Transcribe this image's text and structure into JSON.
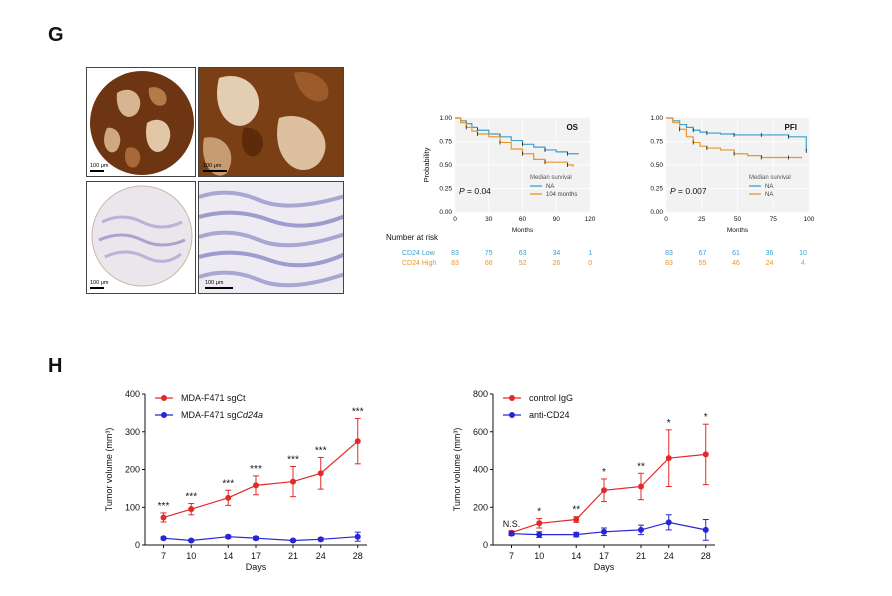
{
  "panels": {
    "g_label": "G",
    "h_label": "H"
  },
  "ihc": {
    "scale_label": "100 μm"
  },
  "colors": {
    "low": "#3aa0cf",
    "high": "#e8962b",
    "red": "#e32a2a",
    "blue": "#2626d6",
    "brown": "#7a3f14",
    "tan": "#d8b592",
    "purple": "#a7a7d4"
  },
  "risk_table": {
    "title": "Number at risk",
    "rows": [
      {
        "label": "CD24 Low",
        "os": [
          "83",
          "75",
          "63",
          "34",
          "1"
        ],
        "pfi": [
          "83",
          "67",
          "61",
          "36",
          "10"
        ]
      },
      {
        "label": "CD24 High",
        "os": [
          "83",
          "66",
          "52",
          "26",
          "0"
        ],
        "pfi": [
          "83",
          "55",
          "46",
          "24",
          "4"
        ]
      }
    ]
  },
  "chart_data": [
    {
      "type": "line",
      "title": "OS",
      "xlabel": "Months",
      "ylabel": "Probability",
      "xlim": [
        0,
        120
      ],
      "ylim": [
        0,
        1
      ],
      "xticks": [
        "0",
        "30",
        "60",
        "90",
        "120"
      ],
      "yticks": [
        "0.00",
        "0.25",
        "0.50",
        "0.75",
        "1.00"
      ],
      "p_value": "= 0.04",
      "p_symbol": "P",
      "legend_title": "Median survival",
      "series": [
        {
          "name": "NA",
          "color": "#3aa0cf",
          "x": [
            0,
            5,
            10,
            15,
            20,
            30,
            40,
            50,
            60,
            70,
            80,
            90,
            100,
            110
          ],
          "y": [
            1.0,
            0.97,
            0.94,
            0.9,
            0.87,
            0.83,
            0.8,
            0.76,
            0.72,
            0.69,
            0.66,
            0.64,
            0.62,
            0.62
          ]
        },
        {
          "name": "104 months",
          "color": "#e8962b",
          "x": [
            0,
            5,
            10,
            15,
            20,
            30,
            40,
            50,
            60,
            70,
            80,
            90,
            100,
            105
          ],
          "y": [
            1.0,
            0.95,
            0.9,
            0.86,
            0.83,
            0.8,
            0.74,
            0.67,
            0.62,
            0.56,
            0.53,
            0.53,
            0.5,
            0.48
          ]
        }
      ]
    },
    {
      "type": "line",
      "title": "PFI",
      "xlabel": "Months",
      "ylabel": "",
      "xlim": [
        0,
        105
      ],
      "ylim": [
        0,
        1
      ],
      "xticks": [
        "0",
        "25",
        "50",
        "75",
        "100"
      ],
      "yticks": [
        "0.00",
        "0.25",
        "0.50",
        "0.75",
        "1.00"
      ],
      "p_value": "= 0.007",
      "p_symbol": "P",
      "legend_title": "Median survival",
      "series": [
        {
          "name": "NA",
          "color": "#3aa0cf",
          "x": [
            0,
            5,
            10,
            15,
            20,
            25,
            30,
            40,
            50,
            60,
            70,
            80,
            90,
            100,
            103
          ],
          "y": [
            1.0,
            0.97,
            0.93,
            0.9,
            0.87,
            0.85,
            0.84,
            0.83,
            0.82,
            0.82,
            0.82,
            0.82,
            0.8,
            0.8,
            0.65
          ]
        },
        {
          "name": "NA",
          "color": "#e8962b",
          "x": [
            0,
            5,
            10,
            15,
            20,
            25,
            30,
            40,
            50,
            60,
            70,
            80,
            90,
            100
          ],
          "y": [
            1.0,
            0.95,
            0.88,
            0.8,
            0.74,
            0.7,
            0.68,
            0.66,
            0.62,
            0.6,
            0.58,
            0.58,
            0.58,
            0.58
          ]
        }
      ]
    },
    {
      "type": "line",
      "title": "",
      "xlabel": "Days",
      "ylabel": "Tumor volume (mm³)",
      "x": [
        7,
        10,
        14,
        17,
        21,
        24,
        28
      ],
      "xticks": [
        "7",
        "10",
        "14",
        "17",
        "21",
        "24",
        "28"
      ],
      "ylim": [
        0,
        400
      ],
      "yticks": [
        "0",
        "100",
        "200",
        "300",
        "400"
      ],
      "series": [
        {
          "name": "MDA-F471 sgCt",
          "color": "#e32a2a",
          "values": [
            73,
            95,
            125,
            158,
            168,
            190,
            275
          ],
          "errors": [
            12,
            15,
            20,
            25,
            40,
            42,
            60
          ],
          "sig": [
            "***",
            "***",
            "***",
            "***",
            "***",
            "***",
            "***"
          ]
        },
        {
          "name_prefix": "MDA-F471 sg",
          "name_italic": "Cd24a",
          "color": "#2626d6",
          "values": [
            18,
            12,
            22,
            18,
            12,
            15,
            22
          ],
          "errors": [
            3,
            3,
            4,
            4,
            3,
            4,
            12
          ]
        }
      ]
    },
    {
      "type": "line",
      "title": "",
      "xlabel": "Days",
      "ylabel": "Tumor volume (mm³)",
      "x": [
        7,
        10,
        14,
        17,
        21,
        24,
        28
      ],
      "xticks": [
        "7",
        "10",
        "14",
        "17",
        "21",
        "24",
        "28"
      ],
      "ylim": [
        0,
        800
      ],
      "yticks": [
        "0",
        "200",
        "400",
        "600",
        "800"
      ],
      "series": [
        {
          "name": "control IgG",
          "color": "#e32a2a",
          "values": [
            65,
            115,
            135,
            290,
            310,
            460,
            480
          ],
          "errors": [
            10,
            25,
            15,
            60,
            70,
            150,
            160
          ],
          "sig": [
            "N.S.",
            "*",
            "**",
            "*",
            "**",
            "*",
            "*"
          ]
        },
        {
          "name": "anti-CD24",
          "color": "#2626d6",
          "values": [
            60,
            55,
            55,
            70,
            80,
            120,
            80
          ],
          "errors": [
            10,
            15,
            12,
            20,
            25,
            40,
            55
          ]
        }
      ]
    }
  ]
}
